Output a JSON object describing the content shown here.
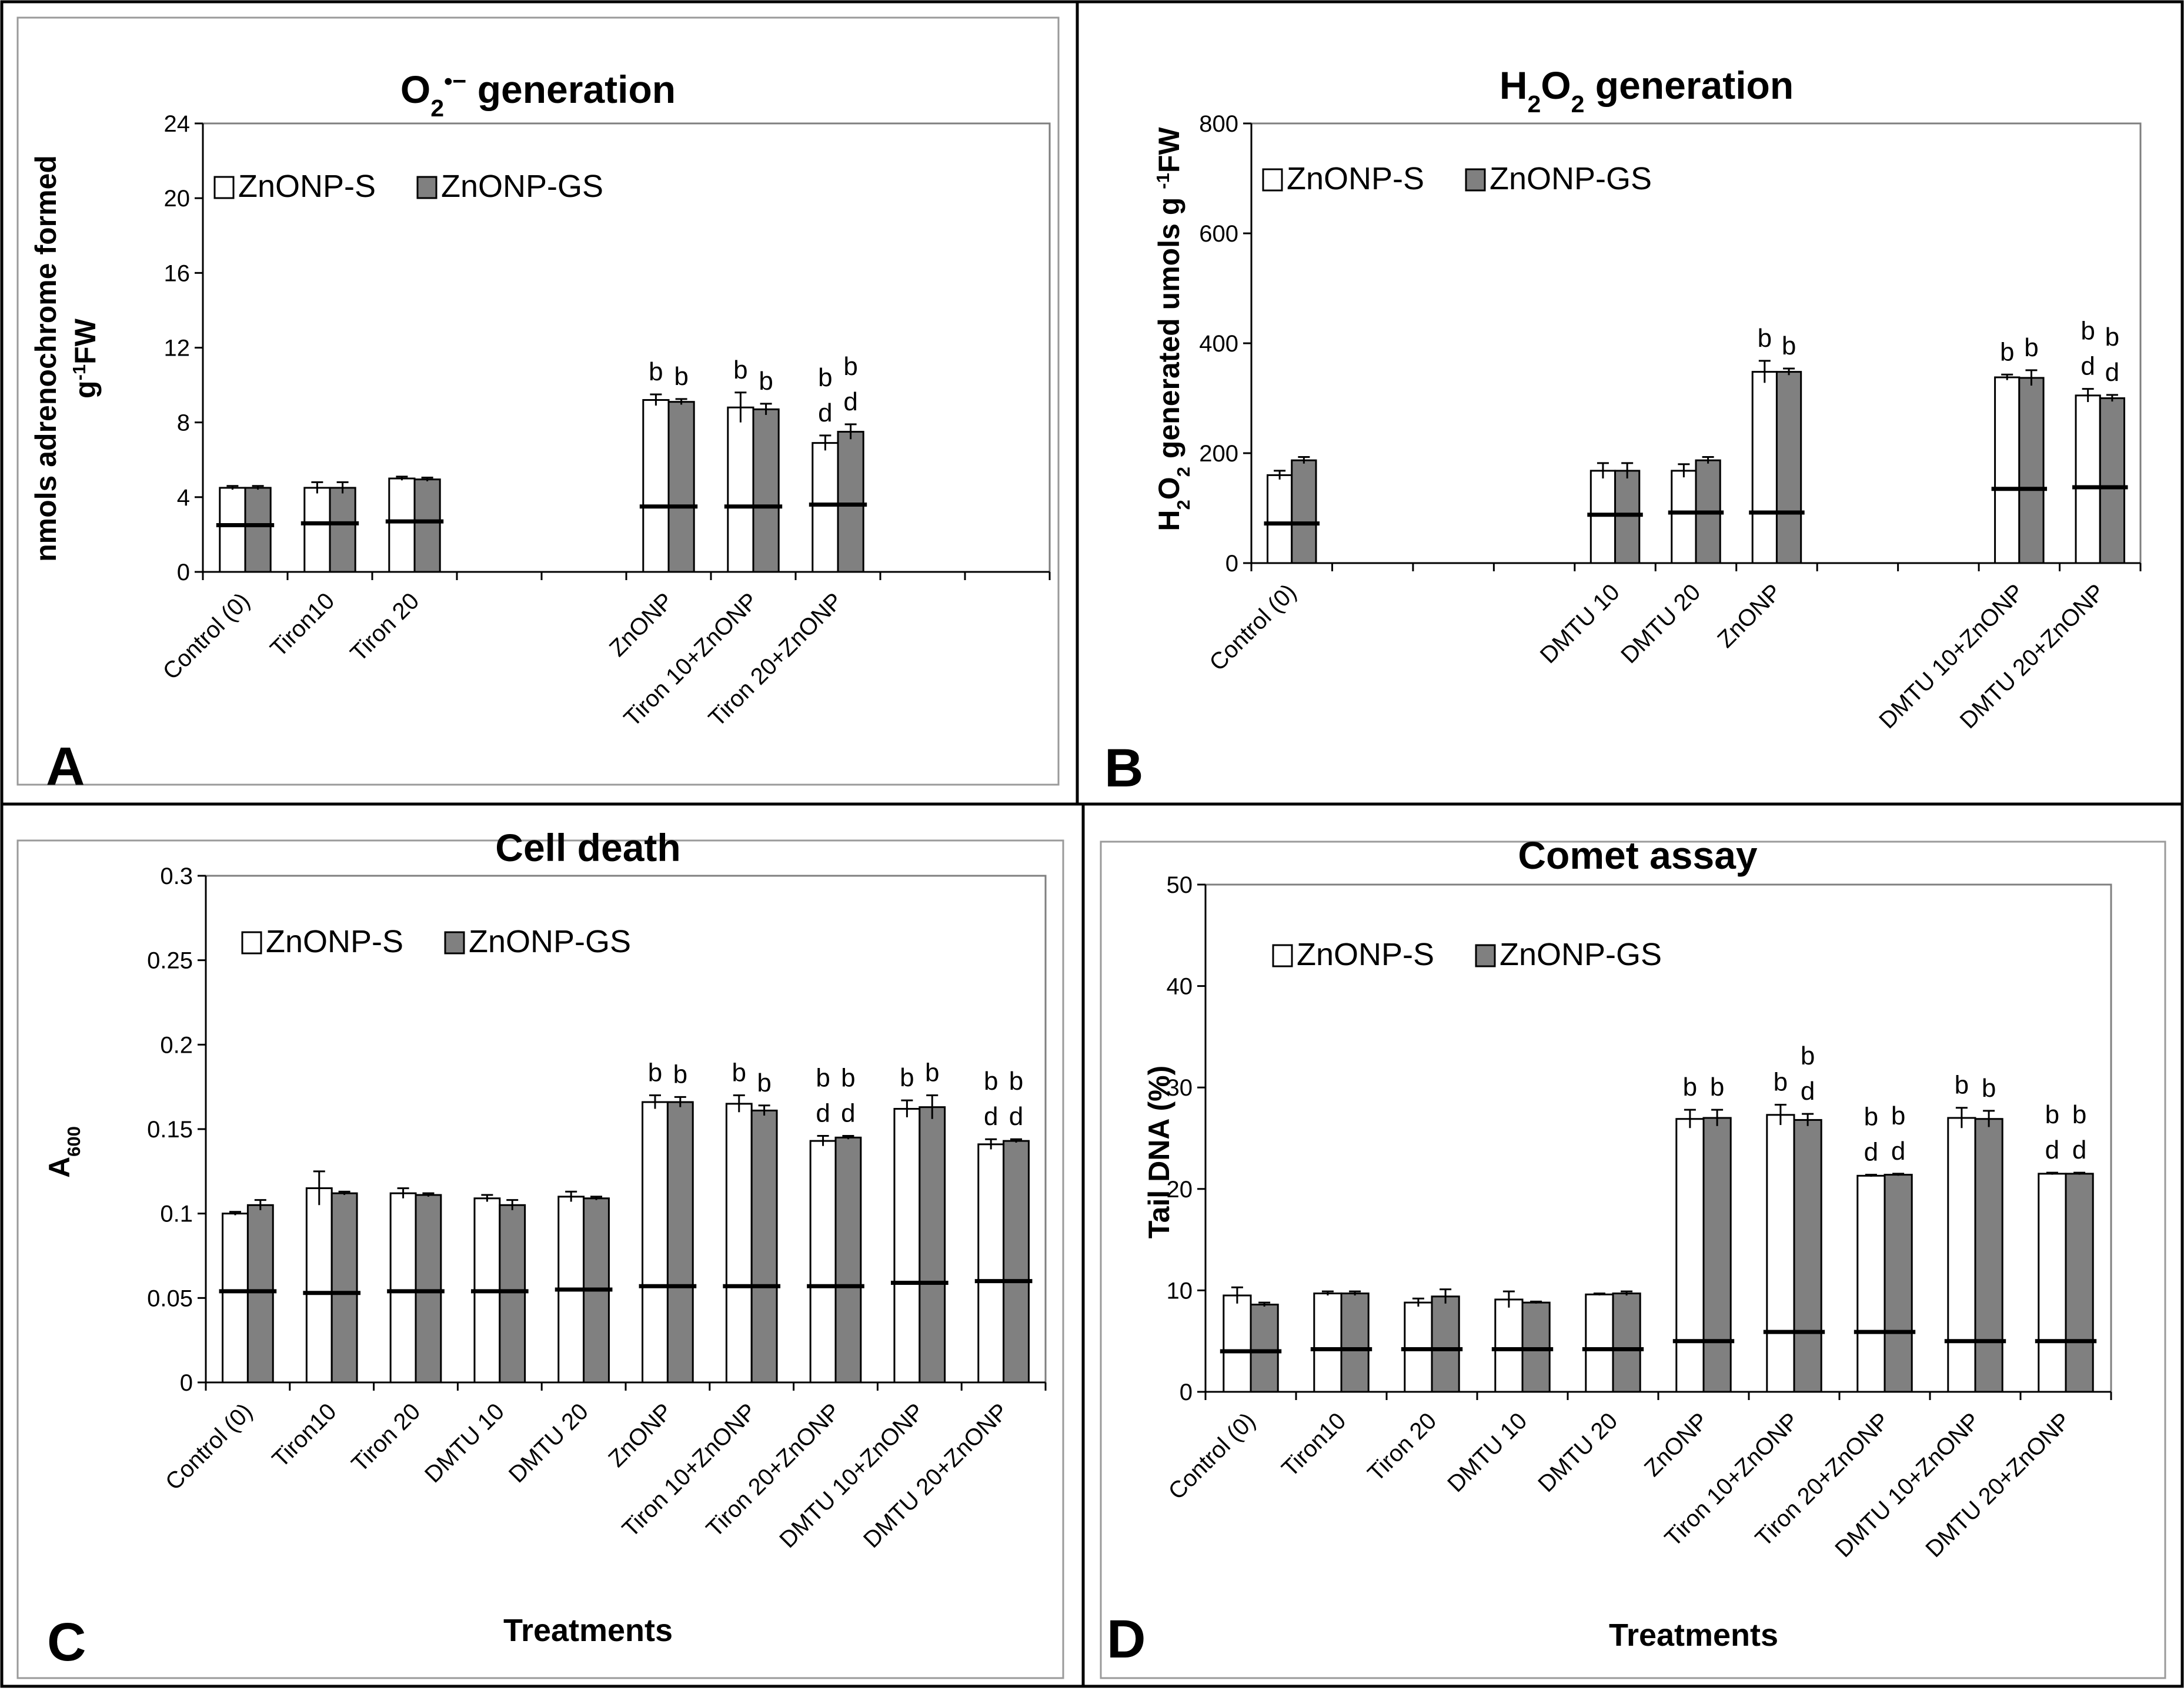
{
  "legend": {
    "s": "ZnONP-S",
    "gs": "ZnONP-GS"
  },
  "colors": {
    "s": "#ffffff",
    "gs": "#808080",
    "axis": "#000000",
    "frame": "#9a9a9a"
  },
  "chart_data": [
    {
      "id": "A",
      "panel_letter": "A",
      "type": "bar",
      "title_parts": [
        {
          "t": "O",
          "pos": "base"
        },
        {
          "t": "2",
          "pos": "sub"
        },
        {
          "t": "•−",
          "pos": "sup"
        },
        {
          "t": " generation",
          "pos": "base"
        }
      ],
      "ylabel_lines": [
        [
          {
            "t": "nmols adrenochrome formed",
            "pos": "base"
          }
        ],
        [
          {
            "t": "g",
            "pos": "base"
          },
          {
            "t": "-1",
            "pos": "sup"
          },
          {
            "t": "FW",
            "pos": "base"
          }
        ]
      ],
      "xlabel": "",
      "ylim": [
        0,
        24
      ],
      "yticks": [
        0,
        4,
        8,
        12,
        16,
        20,
        24
      ],
      "ytick_labels": [
        "0",
        "4",
        "8",
        "12",
        "16",
        "20",
        "24"
      ],
      "slots": 10,
      "categories": [
        "Control (0)",
        "Tiron10",
        "Tiron 20",
        "ZnONP",
        "Tiron 10+ZnONP",
        "Tiron 20+ZnONP"
      ],
      "slot_index": [
        0,
        1,
        2,
        5,
        6,
        7
      ],
      "series": [
        {
          "name": "ZnONP-S",
          "values": [
            4.5,
            4.5,
            5.0,
            9.2,
            8.8,
            6.9
          ],
          "errors": [
            0.1,
            0.3,
            0.1,
            0.3,
            0.8,
            0.4
          ]
        },
        {
          "name": "ZnONP-GS",
          "values": [
            4.5,
            4.5,
            4.95,
            9.1,
            8.7,
            7.5
          ],
          "errors": [
            0.1,
            0.3,
            0.1,
            0.15,
            0.3,
            0.4
          ]
        }
      ],
      "baseline": [
        2.5,
        2.6,
        2.7,
        3.5,
        3.5,
        3.6
      ],
      "annotations": [
        {
          "cat": 3,
          "series": 0,
          "lines": [
            "b"
          ]
        },
        {
          "cat": 3,
          "series": 1,
          "lines": [
            "b"
          ]
        },
        {
          "cat": 4,
          "series": 0,
          "lines": [
            "b"
          ]
        },
        {
          "cat": 4,
          "series": 1,
          "lines": [
            "b"
          ]
        },
        {
          "cat": 5,
          "series": 0,
          "lines": [
            "b",
            "d"
          ]
        },
        {
          "cat": 5,
          "series": 1,
          "lines": [
            "b",
            "d"
          ]
        }
      ]
    },
    {
      "id": "B",
      "panel_letter": "B",
      "type": "bar",
      "title_parts": [
        {
          "t": "H",
          "pos": "base"
        },
        {
          "t": "2",
          "pos": "sub"
        },
        {
          "t": "O",
          "pos": "base"
        },
        {
          "t": "2",
          "pos": "sub"
        },
        {
          "t": " generation",
          "pos": "base"
        }
      ],
      "ylabel_lines": [
        [
          {
            "t": "H",
            "pos": "base"
          },
          {
            "t": "2",
            "pos": "sub"
          },
          {
            "t": "O",
            "pos": "base"
          },
          {
            "t": "2",
            "pos": "sub"
          },
          {
            "t": " generated umols g ",
            "pos": "base"
          },
          {
            "t": "-1",
            "pos": "sup"
          },
          {
            "t": "FW",
            "pos": "base"
          }
        ]
      ],
      "xlabel": "",
      "ylim": [
        0,
        800
      ],
      "yticks": [
        0,
        200,
        400,
        600,
        800
      ],
      "ytick_labels": [
        "0",
        "200",
        "400",
        "600",
        "800"
      ],
      "slots": 11,
      "categories": [
        "Control (0)",
        "DMTU 10",
        "DMTU 20",
        "ZnONP",
        "DMTU 10+ZnONP",
        "DMTU 20+ZnONP"
      ],
      "slot_index": [
        0,
        4,
        5,
        6,
        9,
        10
      ],
      "series": [
        {
          "name": "ZnONP-S",
          "values": [
            160,
            168,
            168,
            348,
            338,
            305
          ],
          "errors": [
            8,
            14,
            12,
            20,
            5,
            12
          ]
        },
        {
          "name": "ZnONP-GS",
          "values": [
            187,
            168,
            187,
            348,
            337,
            300
          ],
          "errors": [
            6,
            14,
            6,
            6,
            14,
            6
          ]
        }
      ],
      "baseline": [
        72,
        88,
        92,
        92,
        135,
        138
      ],
      "annotations": [
        {
          "cat": 3,
          "series": 0,
          "lines": [
            "b"
          ]
        },
        {
          "cat": 3,
          "series": 1,
          "lines": [
            "b"
          ]
        },
        {
          "cat": 4,
          "series": 0,
          "lines": [
            "b"
          ]
        },
        {
          "cat": 4,
          "series": 1,
          "lines": [
            "b"
          ]
        },
        {
          "cat": 5,
          "series": 0,
          "lines": [
            "b",
            "d"
          ]
        },
        {
          "cat": 5,
          "series": 1,
          "lines": [
            "b",
            "d"
          ]
        }
      ]
    },
    {
      "id": "C",
      "panel_letter": "C",
      "type": "bar",
      "title_parts": [
        {
          "t": "Cell death",
          "pos": "base"
        }
      ],
      "ylabel_lines": [
        [
          {
            "t": "A",
            "pos": "base"
          },
          {
            "t": "600",
            "pos": "sub"
          }
        ]
      ],
      "xlabel": "Treatments",
      "ylim": [
        0,
        0.3
      ],
      "yticks": [
        0,
        0.05,
        0.1,
        0.15,
        0.2,
        0.25,
        0.3
      ],
      "ytick_labels": [
        "0",
        "0.05",
        "0.1",
        "0.15",
        "0.2",
        "0.25",
        "0.3"
      ],
      "slots": 10,
      "categories": [
        "Control (0)",
        "Tiron10",
        "Tiron 20",
        "DMTU 10",
        "DMTU 20",
        "ZnONP",
        "Tiron 10+ZnONP",
        "Tiron 20+ZnONP",
        "DMTU 10+ZnONP",
        "DMTU 20+ZnONP"
      ],
      "slot_index": [
        0,
        1,
        2,
        3,
        4,
        5,
        6,
        7,
        8,
        9
      ],
      "series": [
        {
          "name": "ZnONP-S",
          "values": [
            0.1,
            0.115,
            0.112,
            0.109,
            0.11,
            0.166,
            0.165,
            0.143,
            0.162,
            0.141
          ],
          "errors": [
            0.001,
            0.01,
            0.003,
            0.002,
            0.003,
            0.004,
            0.005,
            0.003,
            0.005,
            0.003
          ]
        },
        {
          "name": "ZnONP-GS",
          "values": [
            0.105,
            0.112,
            0.111,
            0.105,
            0.109,
            0.166,
            0.161,
            0.145,
            0.163,
            0.143
          ],
          "errors": [
            0.003,
            0.001,
            0.001,
            0.003,
            0.001,
            0.003,
            0.003,
            0.001,
            0.007,
            0.001
          ]
        }
      ],
      "baseline": [
        0.054,
        0.053,
        0.054,
        0.054,
        0.055,
        0.057,
        0.057,
        0.057,
        0.059,
        0.06
      ],
      "annotations": [
        {
          "cat": 5,
          "series": 0,
          "lines": [
            "b"
          ]
        },
        {
          "cat": 5,
          "series": 1,
          "lines": [
            "b"
          ]
        },
        {
          "cat": 6,
          "series": 0,
          "lines": [
            "b"
          ]
        },
        {
          "cat": 6,
          "series": 1,
          "lines": [
            "b"
          ]
        },
        {
          "cat": 7,
          "series": 0,
          "lines": [
            "b",
            "d"
          ]
        },
        {
          "cat": 7,
          "series": 1,
          "lines": [
            "b",
            "d"
          ]
        },
        {
          "cat": 8,
          "series": 0,
          "lines": [
            "b"
          ]
        },
        {
          "cat": 8,
          "series": 1,
          "lines": [
            "b"
          ]
        },
        {
          "cat": 9,
          "series": 0,
          "lines": [
            "b",
            "d"
          ]
        },
        {
          "cat": 9,
          "series": 1,
          "lines": [
            "b",
            "d"
          ]
        }
      ]
    },
    {
      "id": "D",
      "panel_letter": "D",
      "type": "bar",
      "title_parts": [
        {
          "t": "Comet assay",
          "pos": "base"
        }
      ],
      "ylabel_lines": [
        [
          {
            "t": "Tail DNA (%)",
            "pos": "base"
          }
        ]
      ],
      "xlabel": "Treatments",
      "ylim": [
        0,
        50
      ],
      "yticks": [
        0,
        10,
        20,
        30,
        40,
        50
      ],
      "ytick_labels": [
        "0",
        "10",
        "20",
        "30",
        "40",
        "50"
      ],
      "slots": 10,
      "categories": [
        "Control (0)",
        "Tiron10",
        "Tiron 20",
        "DMTU 10",
        "DMTU 20",
        "ZnONP",
        "Tiron 10+ZnONP",
        "Tiron 20+ZnONP",
        "DMTU 10+ZnONP",
        "DMTU 20+ZnONP"
      ],
      "slot_index": [
        0,
        1,
        2,
        3,
        4,
        5,
        6,
        7,
        8,
        9
      ],
      "series": [
        {
          "name": "ZnONP-S",
          "values": [
            9.5,
            9.7,
            8.8,
            9.1,
            9.6,
            26.9,
            27.3,
            21.3,
            27.0,
            21.5
          ],
          "errors": [
            0.8,
            0.2,
            0.4,
            0.8,
            0.1,
            0.9,
            1.0,
            0.1,
            1.0,
            0.1
          ]
        },
        {
          "name": "ZnONP-GS",
          "values": [
            8.6,
            9.7,
            9.4,
            8.8,
            9.7,
            27.0,
            26.8,
            21.4,
            26.9,
            21.5
          ],
          "errors": [
            0.2,
            0.2,
            0.7,
            0.1,
            0.2,
            0.8,
            0.6,
            0.1,
            0.8,
            0.1
          ]
        }
      ],
      "baseline": [
        4.0,
        4.2,
        4.2,
        4.2,
        4.2,
        5.0,
        5.9,
        5.9,
        5.0,
        5.0
      ],
      "annotations": [
        {
          "cat": 5,
          "series": 0,
          "lines": [
            "b"
          ]
        },
        {
          "cat": 5,
          "series": 1,
          "lines": [
            "b"
          ]
        },
        {
          "cat": 6,
          "series": 0,
          "lines": [
            "b"
          ]
        },
        {
          "cat": 6,
          "series": 1,
          "lines": [
            "b",
            "d"
          ]
        },
        {
          "cat": 7,
          "series": 0,
          "lines": [
            "b",
            "d"
          ]
        },
        {
          "cat": 7,
          "series": 1,
          "lines": [
            "b",
            "d"
          ]
        },
        {
          "cat": 8,
          "series": 0,
          "lines": [
            "b"
          ]
        },
        {
          "cat": 8,
          "series": 1,
          "lines": [
            "b"
          ]
        },
        {
          "cat": 9,
          "series": 0,
          "lines": [
            "b",
            "d"
          ]
        },
        {
          "cat": 9,
          "series": 1,
          "lines": [
            "b",
            "d"
          ]
        }
      ]
    }
  ]
}
